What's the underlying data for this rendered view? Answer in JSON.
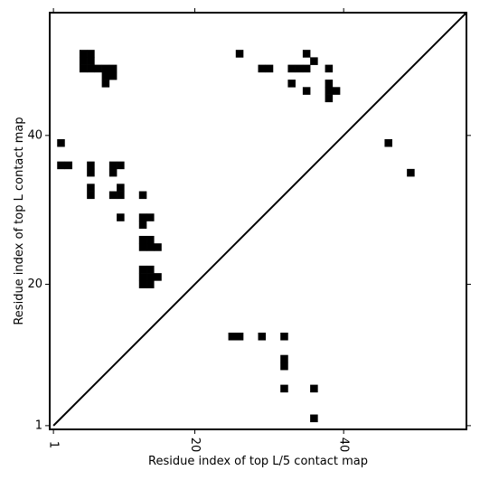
{
  "chart_data": {
    "type": "heatmap",
    "title": "",
    "xlabel": "Residue index of top L/5 contact map",
    "ylabel": "Residue index of top L contact map",
    "xlim": [
      0.5,
      56.5
    ],
    "ylim": [
      0.5,
      56.5
    ],
    "xticks": [
      1,
      20,
      40
    ],
    "yticks": [
      1,
      20,
      40
    ],
    "grid": false,
    "legend": "none",
    "diagonal": true,
    "cell_color": "#000000",
    "upper_cells": [
      [
        5,
        51
      ],
      [
        6,
        51
      ],
      [
        5,
        50
      ],
      [
        6,
        50
      ],
      [
        5,
        49
      ],
      [
        6,
        49
      ],
      [
        7,
        49
      ],
      [
        8,
        49
      ],
      [
        9,
        49
      ],
      [
        8,
        48
      ],
      [
        9,
        48
      ],
      [
        8,
        47
      ],
      [
        2,
        39
      ],
      [
        2,
        36
      ],
      [
        3,
        36
      ],
      [
        6,
        36
      ],
      [
        9,
        36
      ],
      [
        10,
        36
      ],
      [
        6,
        35
      ],
      [
        9,
        35
      ],
      [
        6,
        33
      ],
      [
        10,
        33
      ],
      [
        6,
        32
      ],
      [
        9,
        32
      ],
      [
        10,
        32
      ],
      [
        13,
        32
      ],
      [
        10,
        29
      ],
      [
        13,
        29
      ],
      [
        14,
        29
      ],
      [
        13,
        28
      ],
      [
        13,
        26
      ],
      [
        14,
        26
      ],
      [
        13,
        25
      ],
      [
        14,
        25
      ],
      [
        15,
        25
      ],
      [
        13,
        22
      ],
      [
        14,
        22
      ],
      [
        13,
        21
      ],
      [
        14,
        21
      ],
      [
        15,
        21
      ],
      [
        13,
        20
      ],
      [
        14,
        20
      ],
      [
        26,
        51
      ],
      [
        35,
        51
      ],
      [
        36,
        50
      ],
      [
        29,
        49
      ],
      [
        30,
        49
      ],
      [
        33,
        49
      ],
      [
        34,
        49
      ],
      [
        35,
        49
      ],
      [
        38,
        49
      ],
      [
        33,
        47
      ],
      [
        38,
        47
      ],
      [
        35,
        46
      ],
      [
        38,
        46
      ],
      [
        39,
        46
      ],
      [
        38,
        45
      ],
      [
        46,
        39
      ],
      [
        49,
        35
      ]
    ],
    "lower_cells": [
      [
        25,
        13
      ],
      [
        26,
        13
      ],
      [
        29,
        13
      ],
      [
        32,
        13
      ],
      [
        32,
        10
      ],
      [
        32,
        9
      ],
      [
        32,
        6
      ],
      [
        36,
        6
      ],
      [
        36,
        2
      ]
    ]
  }
}
